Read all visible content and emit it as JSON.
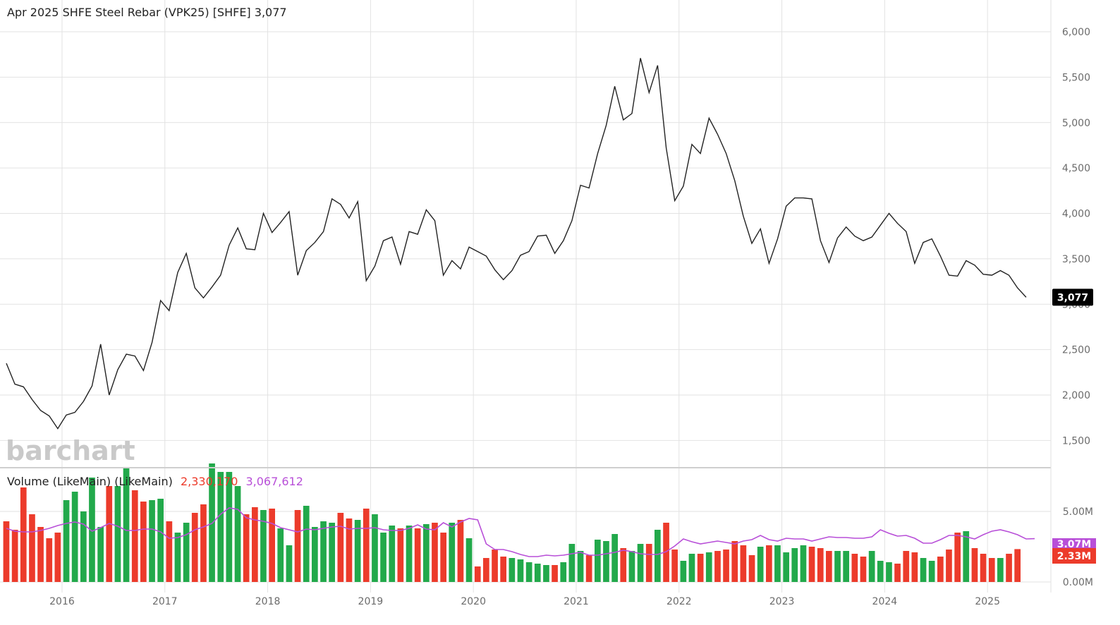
{
  "title": "Apr 2025  SHFE Steel Rebar (VPK25) [SHFE] 3,077",
  "logo": "barchart",
  "colors": {
    "price_line": "#222222",
    "up_volume": "#22a94b",
    "down_volume": "#ec3b2b",
    "volume_average": "#b84fd8",
    "last_price_badge": "#000000",
    "grid": "#e2e2e2"
  },
  "price_panel": {
    "last_price_label": "3,077",
    "y_ticks": [
      "1,500",
      "2,000",
      "2,500",
      "3,000",
      "3,500",
      "4,000",
      "4,500",
      "5,000",
      "5,500",
      "6,000"
    ]
  },
  "volume_panel": {
    "label": "Volume (LikeMain)  (LikeMain)",
    "volume_value": "2,330,170",
    "average_value": "3,067,612",
    "badge_volume": "2.33M",
    "badge_average": "3.07M",
    "y_ticks": [
      "0.00M",
      "5.00M"
    ]
  },
  "x_ticks": [
    "2016",
    "2017",
    "2018",
    "2019",
    "2020",
    "2021",
    "2022",
    "2023",
    "2024",
    "2025"
  ],
  "chart_data": [
    {
      "type": "line",
      "title": "Apr 2025  SHFE Steel Rebar (VPK25) [SHFE] 3,077",
      "x_start": "2015-06",
      "x_frequency": "monthly",
      "ylim": [
        1200,
        6350
      ],
      "grid": true,
      "values": [
        2350,
        2120,
        2090,
        1950,
        1830,
        1770,
        1630,
        1780,
        1810,
        1930,
        2100,
        2560,
        2000,
        2280,
        2450,
        2430,
        2270,
        2580,
        3040,
        2930,
        3350,
        3560,
        3180,
        3070,
        3190,
        3320,
        3650,
        3840,
        3610,
        3600,
        4000,
        3790,
        3900,
        4020,
        3320,
        3590,
        3680,
        3800,
        4160,
        4100,
        3950,
        4130,
        3260,
        3420,
        3700,
        3740,
        3440,
        3800,
        3770,
        4040,
        3920,
        3320,
        3480,
        3390,
        3630,
        3580,
        3530,
        3380,
        3270,
        3370,
        3540,
        3580,
        3750,
        3760,
        3560,
        3700,
        3920,
        4310,
        4280,
        4660,
        4970,
        5400,
        5030,
        5100,
        5710,
        5330,
        5630,
        4720,
        4140,
        4300,
        4760,
        4660,
        5050,
        4870,
        4660,
        4360,
        3970,
        3670,
        3830,
        3450,
        3720,
        4080,
        4170,
        4170,
        4160,
        3700,
        3460,
        3730,
        3850,
        3750,
        3700,
        3740,
        3870,
        4000,
        3890,
        3800,
        3450,
        3680,
        3720,
        3530,
        3320,
        3310,
        3480,
        3430,
        3330,
        3320,
        3370,
        3320,
        3180,
        3077
      ]
    },
    {
      "type": "bar",
      "title": "Volume (LikeMain)  (LikeMain)",
      "x_start": "2015-06",
      "x_frequency": "monthly",
      "ylim": [
        0,
        8000000
      ],
      "grid": true,
      "series": [
        {
          "values": [
            4300000,
            3700000,
            6700000,
            4800000,
            3900000,
            3100000,
            3500000,
            5800000,
            6400000,
            5000000,
            7400000,
            3900000,
            6800000,
            6800000,
            8100000,
            6500000,
            5700000,
            5800000,
            5900000,
            4300000,
            3500000,
            4200000,
            4900000,
            5500000,
            8400000,
            7800000,
            7800000,
            6800000,
            4800000,
            5300000,
            5100000,
            5200000,
            3800000,
            2600000,
            5100000,
            5400000,
            3900000,
            4300000,
            4200000,
            4900000,
            4500000,
            4400000,
            5200000,
            4800000,
            3500000,
            4000000,
            3800000,
            4000000,
            3800000,
            4100000,
            4200000,
            3500000,
            4200000,
            4400000,
            3100000,
            1100000,
            1700000,
            2300000,
            1800000,
            1700000,
            1600000,
            1400000,
            1300000,
            1200000,
            1200000,
            1400000,
            2700000,
            2200000,
            1900000,
            3000000,
            2900000,
            3400000,
            2400000,
            2200000,
            2700000,
            2700000,
            3700000,
            4200000,
            2300000,
            1500000,
            2000000,
            2000000,
            2100000,
            2200000,
            2300000,
            2900000,
            2600000,
            1900000,
            2500000,
            2600000,
            2600000,
            2100000,
            2400000,
            2600000,
            2500000,
            2400000,
            2200000,
            2200000,
            2200000,
            2000000,
            1800000,
            2200000,
            1500000,
            1400000,
            1300000,
            2200000,
            2100000,
            1700000,
            1500000,
            1800000,
            2300000,
            3500000,
            3600000,
            2400000,
            2000000,
            1700000,
            1700000,
            2000000,
            2330170
          ]
        },
        {
          "name": "3,067,612",
          "type": "line",
          "values": [
            3800000,
            3600000,
            3550000,
            3550000,
            3650000,
            3800000,
            4000000,
            4150000,
            4250000,
            4100000,
            3600000,
            3850000,
            4150000,
            3950000,
            3650000,
            3650000,
            3750000,
            3750000,
            3550000,
            3100000,
            3150000,
            3350000,
            3700000,
            3900000,
            4150000,
            4800000,
            5250000,
            5150000,
            4550000,
            4400000,
            4300000,
            4150000,
            3850000,
            3700000,
            3550000,
            3750000,
            3700000,
            3800000,
            3900000,
            3950000,
            3750000,
            3800000,
            3800000,
            3850000,
            3700000,
            3650000,
            3650000,
            3800000,
            4050000,
            3750000,
            3700000,
            4200000,
            3900000,
            4250000,
            4500000,
            4400000,
            2700000,
            2300000,
            2300000,
            2150000,
            1950000,
            1800000,
            1800000,
            1900000,
            1850000,
            1900000,
            2000000,
            2100000,
            1900000,
            1900000,
            2000000,
            2100000,
            2250000,
            2150000,
            2000000,
            1950000,
            1950000,
            2150000,
            2550000,
            3050000,
            2850000,
            2700000,
            2800000,
            2900000,
            2800000,
            2700000,
            2900000,
            3000000,
            3300000,
            3000000,
            2900000,
            3100000,
            3050000,
            3050000,
            2900000,
            3050000,
            3200000,
            3150000,
            3150000,
            3100000,
            3100000,
            3200000,
            3700000,
            3450000,
            3250000,
            3300000,
            3100000,
            2750000,
            2750000,
            3000000,
            3300000,
            3300000,
            3200000,
            3050000,
            3350000,
            3600000,
            3700000,
            3550000,
            3350000,
            3050000,
            3067612
          ]
        }
      ]
    }
  ]
}
